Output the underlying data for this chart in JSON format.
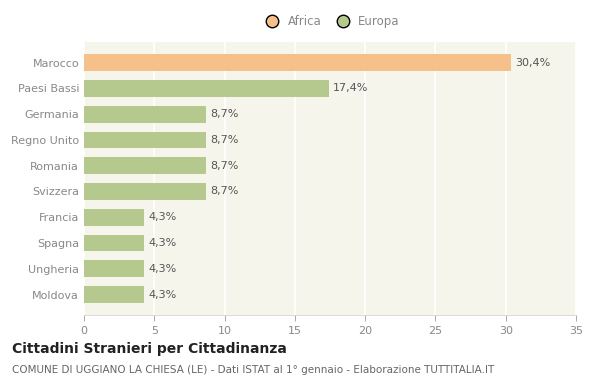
{
  "categories": [
    "Moldova",
    "Ungheria",
    "Spagna",
    "Francia",
    "Svizzera",
    "Romania",
    "Regno Unito",
    "Germania",
    "Paesi Bassi",
    "Marocco"
  ],
  "values": [
    4.3,
    4.3,
    4.3,
    4.3,
    8.7,
    8.7,
    8.7,
    8.7,
    17.4,
    30.4
  ],
  "labels": [
    "4,3%",
    "4,3%",
    "4,3%",
    "4,3%",
    "8,7%",
    "8,7%",
    "8,7%",
    "8,7%",
    "17,4%",
    "30,4%"
  ],
  "colors": [
    "#b5c98e",
    "#b5c98e",
    "#b5c98e",
    "#b5c98e",
    "#b5c98e",
    "#b5c98e",
    "#b5c98e",
    "#b5c98e",
    "#b5c98e",
    "#f5c08a"
  ],
  "legend_labels": [
    "Africa",
    "Europa"
  ],
  "legend_colors": [
    "#f5c08a",
    "#b5c98e"
  ],
  "title": "Cittadini Stranieri per Cittadinanza",
  "subtitle": "COMUNE DI UGGIANO LA CHIESA (LE) - Dati ISTAT al 1° gennaio - Elaborazione TUTTITALIA.IT",
  "xlim": [
    0,
    35
  ],
  "xticks": [
    0,
    5,
    10,
    15,
    20,
    25,
    30,
    35
  ],
  "fig_background": "#ffffff",
  "plot_background": "#f5f5eb",
  "grid_color": "#ffffff",
  "bar_label_color": "#555555",
  "tick_color": "#888888",
  "title_color": "#222222",
  "subtitle_color": "#666666",
  "title_fontsize": 10,
  "subtitle_fontsize": 7.5,
  "label_fontsize": 8,
  "tick_fontsize": 8,
  "legend_fontsize": 8.5
}
